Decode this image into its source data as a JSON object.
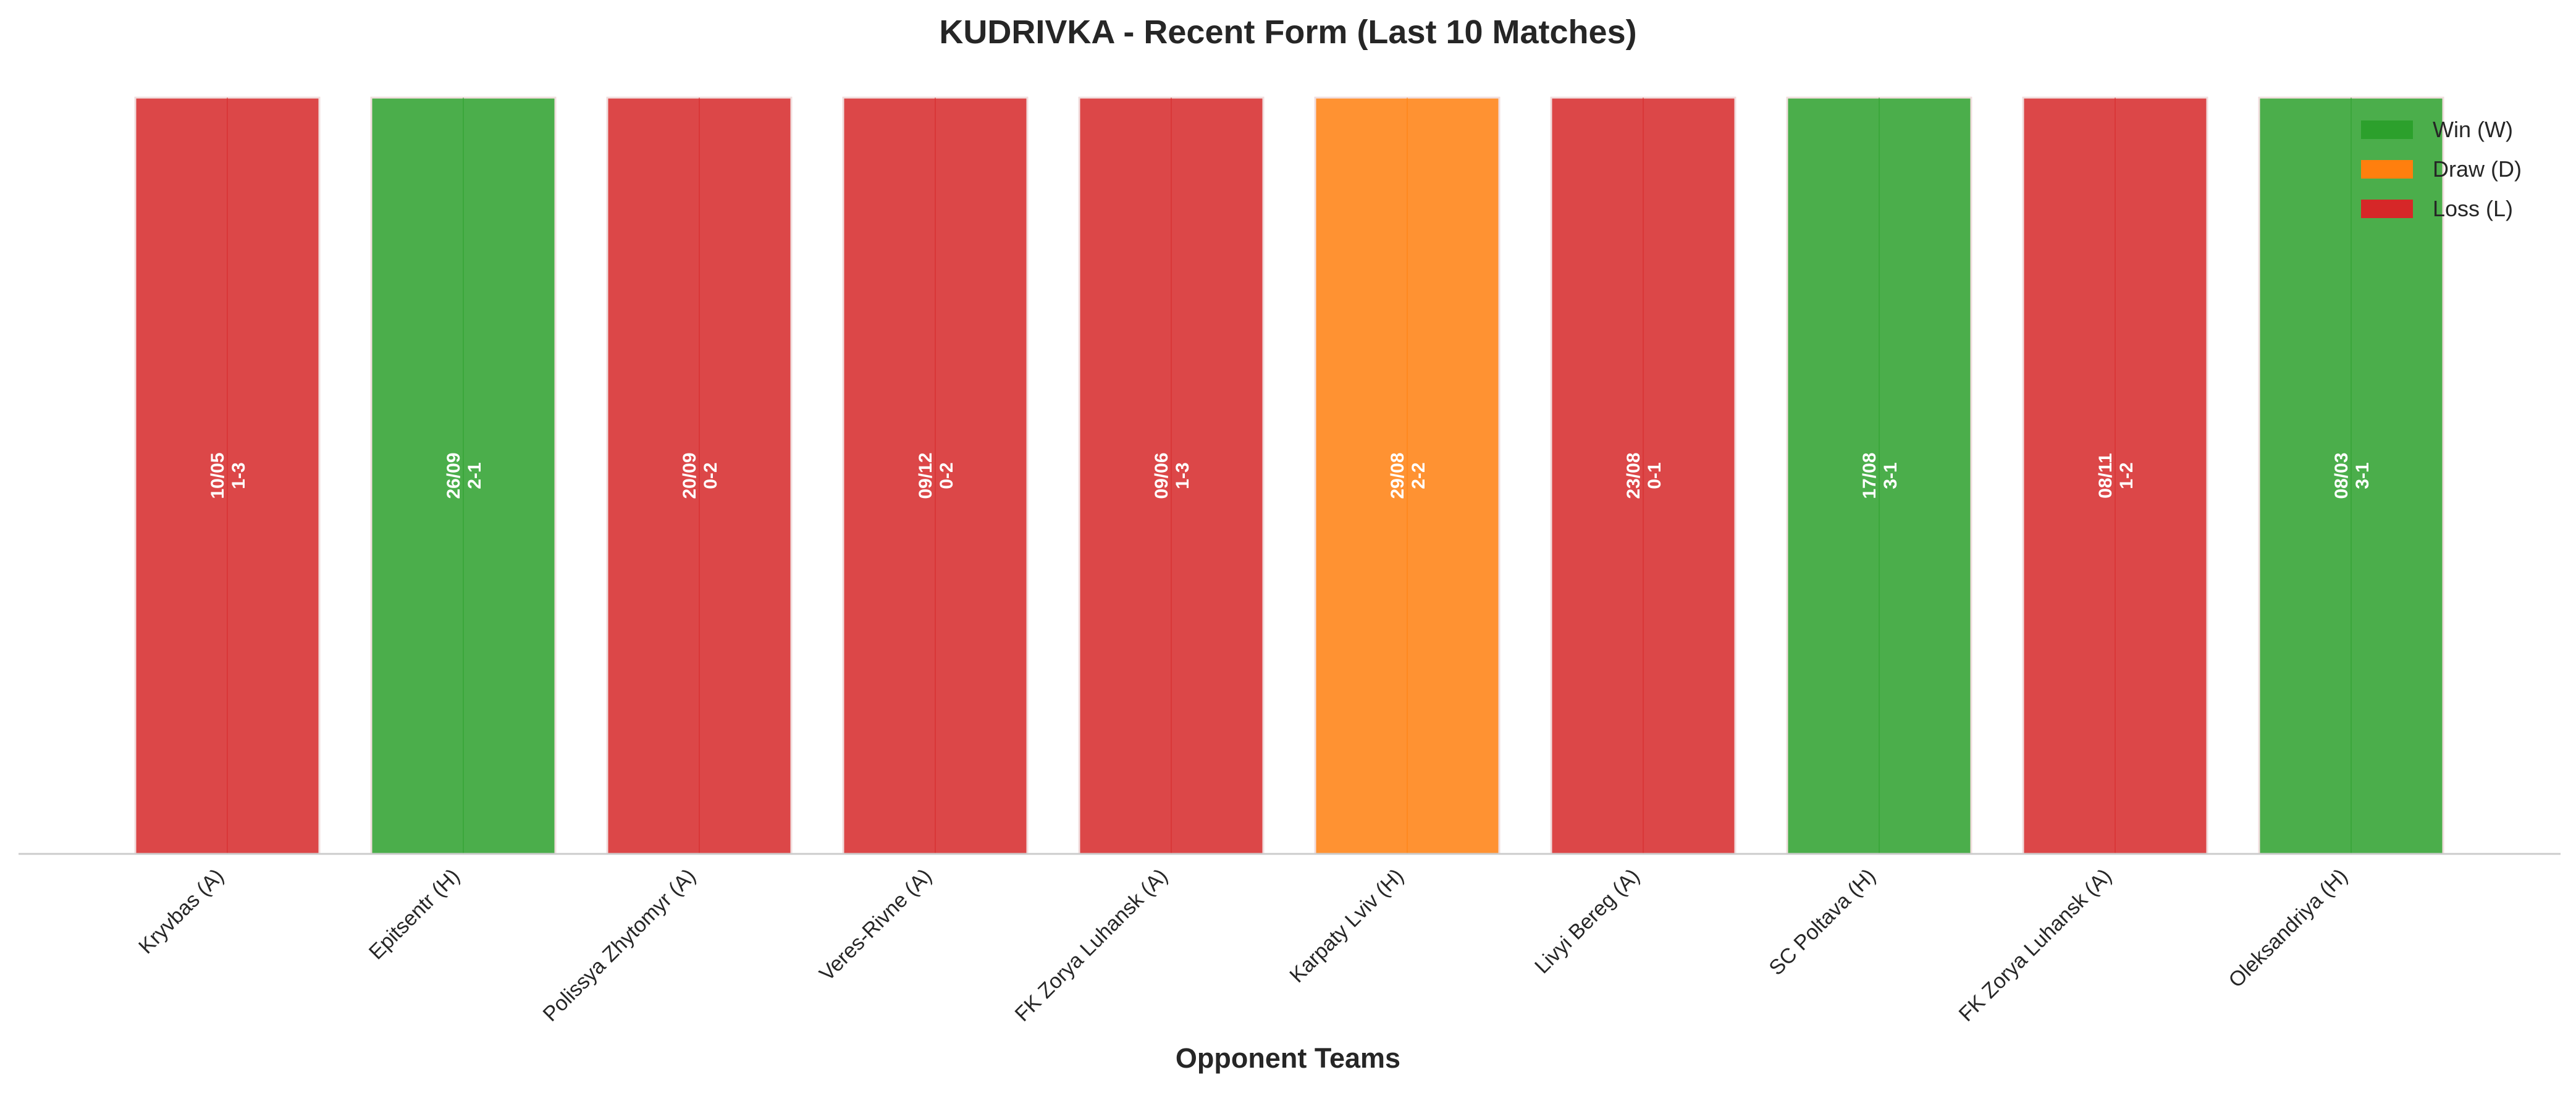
{
  "chart_data": {
    "type": "bar",
    "title": "KUDRIVKA - Recent Form (Last 10 Matches)",
    "xlabel": "Opponent Teams",
    "ylabel": "",
    "ylim": [
      0,
      1
    ],
    "grid": false,
    "legend_position": "top-right",
    "categories": [
      "Kryvbas (A)",
      "Epitsentr (H)",
      "Polissya Zhytomyr (A)",
      "Veres-Rivne (A)",
      "FK Zorya Luhansk (A)",
      "Karpaty Lviv (H)",
      "Livyi Bereg (A)",
      "SC Poltava (H)",
      "FK Zorya Luhansk (A)",
      "Oleksandriya (H)"
    ],
    "values": [
      1,
      1,
      1,
      1,
      1,
      1,
      1,
      1,
      1,
      1
    ],
    "results": [
      "L",
      "W",
      "L",
      "L",
      "L",
      "D",
      "L",
      "W",
      "L",
      "W"
    ],
    "dates": [
      "10/05",
      "26/09",
      "20/09",
      "09/12",
      "09/06",
      "29/08",
      "23/08",
      "17/08",
      "08/11",
      "08/03"
    ],
    "scores": [
      "1-3",
      "2-1",
      "0-2",
      "0-2",
      "1-3",
      "2-2",
      "0-1",
      "3-1",
      "1-2",
      "3-1"
    ],
    "legend": [
      {
        "key": "W",
        "label": "Win (W)"
      },
      {
        "key": "D",
        "label": "Draw (D)"
      },
      {
        "key": "L",
        "label": "Loss (L)"
      }
    ],
    "colors": {
      "W": "#2ca02c",
      "D": "#ff7f0e",
      "L": "#d62728",
      "bar_edge": "#f1dede",
      "axis": "#cccccc",
      "text": "#262626"
    }
  }
}
